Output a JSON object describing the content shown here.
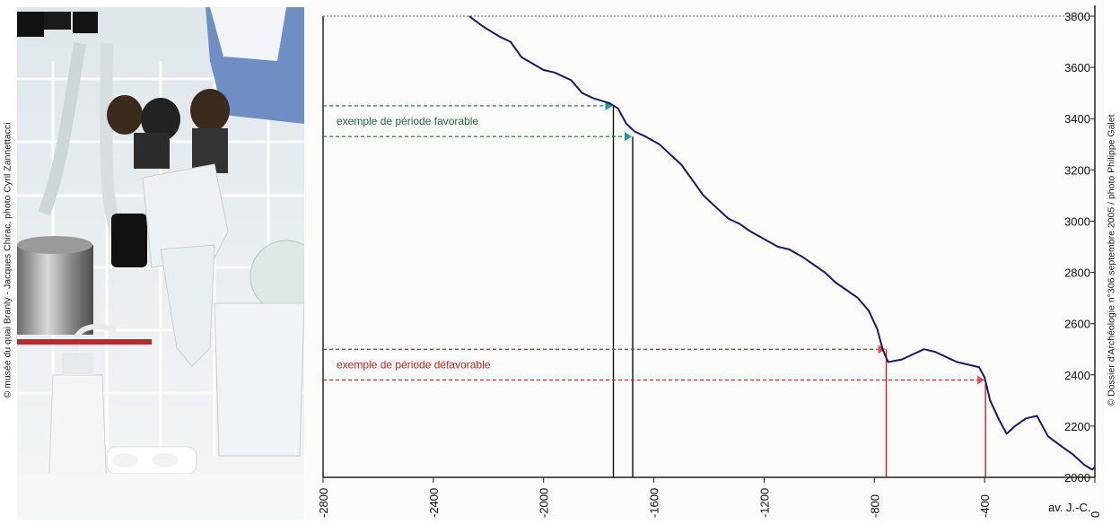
{
  "credits": {
    "left": "© musée du quai Branly - Jacques Chirac, photo Cyril Zannettacci",
    "right": "© Dossier d'Archéologie n°306 septembre 2005 / photo Philippe Galet"
  },
  "photo": {
    "description_icon": "lab-glassware-photo-icon"
  },
  "chart_data": {
    "type": "line",
    "title": "",
    "xlabel": "av. J.-C.",
    "ylabel": "",
    "xlim": [
      -2800,
      0
    ],
    "ylim": [
      2000,
      3800
    ],
    "x_ticks": [
      -2800,
      -2400,
      -2000,
      -1600,
      -1200,
      -800,
      -400,
      0
    ],
    "x_tick_labels": [
      "-2800",
      "-2400",
      "-2000",
      "-1600",
      "-1200",
      "-800",
      "-400",
      "0"
    ],
    "y_ticks": [
      2000,
      2200,
      2400,
      2600,
      2800,
      3000,
      3200,
      3400,
      3600,
      3800
    ],
    "y_tick_labels": [
      "2000",
      "2200",
      "2400",
      "2600",
      "2800",
      "3000",
      "3200",
      "3400",
      "3600",
      "3800"
    ],
    "grid": false,
    "series": [
      {
        "name": "",
        "color": "#1a1a5e",
        "points": [
          [
            -2270,
            3800
          ],
          [
            -2220,
            3760
          ],
          [
            -2160,
            3720
          ],
          [
            -2120,
            3700
          ],
          [
            -2080,
            3640
          ],
          [
            -2000,
            3590
          ],
          [
            -1960,
            3580
          ],
          [
            -1900,
            3550
          ],
          [
            -1860,
            3500
          ],
          [
            -1820,
            3480
          ],
          [
            -1760,
            3460
          ],
          [
            -1730,
            3440
          ],
          [
            -1700,
            3380
          ],
          [
            -1670,
            3350
          ],
          [
            -1630,
            3330
          ],
          [
            -1580,
            3300
          ],
          [
            -1540,
            3260
          ],
          [
            -1500,
            3220
          ],
          [
            -1460,
            3160
          ],
          [
            -1420,
            3100
          ],
          [
            -1370,
            3050
          ],
          [
            -1330,
            3010
          ],
          [
            -1290,
            2990
          ],
          [
            -1250,
            2960
          ],
          [
            -1200,
            2930
          ],
          [
            -1150,
            2900
          ],
          [
            -1110,
            2890
          ],
          [
            -1060,
            2860
          ],
          [
            -1020,
            2830
          ],
          [
            -980,
            2800
          ],
          [
            -940,
            2760
          ],
          [
            -900,
            2730
          ],
          [
            -860,
            2700
          ],
          [
            -820,
            2650
          ],
          [
            -790,
            2580
          ],
          [
            -770,
            2500
          ],
          [
            -750,
            2450
          ],
          [
            -700,
            2460
          ],
          [
            -660,
            2480
          ],
          [
            -620,
            2500
          ],
          [
            -580,
            2490
          ],
          [
            -540,
            2470
          ],
          [
            -500,
            2450
          ],
          [
            -460,
            2440
          ],
          [
            -420,
            2430
          ],
          [
            -400,
            2390
          ],
          [
            -380,
            2300
          ],
          [
            -350,
            2230
          ],
          [
            -320,
            2170
          ],
          [
            -290,
            2200
          ],
          [
            -250,
            2230
          ],
          [
            -210,
            2240
          ],
          [
            -170,
            2160
          ],
          [
            -120,
            2120
          ],
          [
            -80,
            2090
          ],
          [
            -40,
            2050
          ],
          [
            -10,
            2030
          ],
          [
            0,
            2040
          ]
        ]
      }
    ],
    "annotations": [
      {
        "kind": "favorable",
        "label": "exemple de période favorable",
        "color": "#1f6e3a",
        "arrow_color": "#1aa08a",
        "periods": [
          {
            "x": -1750,
            "y": 3450
          },
          {
            "x": -1680,
            "y": 3330
          }
        ]
      },
      {
        "kind": "defavorable",
        "label": "exemple de période défavorable",
        "color": "#d02020",
        "arrow_color": "#e05050",
        "periods": [
          {
            "x": -760,
            "y": 2500
          },
          {
            "x": -400,
            "y": 2380
          }
        ]
      }
    ]
  }
}
